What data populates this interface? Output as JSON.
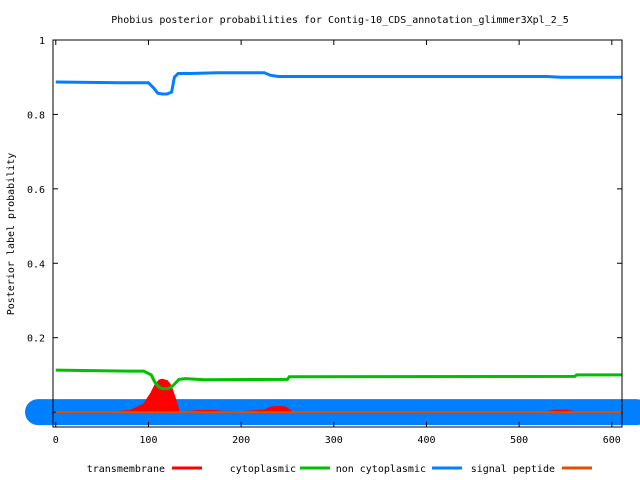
{
  "chart_data": {
    "type": "line",
    "title": "Phobius posterior probabilities for Contig-10_CDS_annotation_glimmer3Xpl_2_5",
    "xlabel": "",
    "ylabel": "Posterior label probability",
    "xlim": [
      -3,
      611
    ],
    "ylim": [
      -0.04,
      1.0
    ],
    "x_ticks": [
      0,
      100,
      200,
      300,
      400,
      500,
      600
    ],
    "y_ticks": [
      0.2,
      0.4,
      0.6,
      0.8,
      1
    ],
    "y_tick_labels": [
      "0.2",
      "0.4",
      "0.6",
      "0.8",
      "1"
    ],
    "x_tick_labels": [
      "0",
      "100",
      "200",
      "300",
      "400",
      "500",
      "600"
    ],
    "grid": false,
    "legend_position": "bottom",
    "series": [
      {
        "name": "transmembrane",
        "color": "#ff0000",
        "style": "filled",
        "x": [
          0,
          65,
          80,
          95,
          103,
          108,
          112,
          115,
          120,
          124,
          128,
          133,
          145,
          155,
          170,
          180,
          200,
          225,
          232,
          240,
          248,
          255,
          270,
          530,
          540,
          550,
          560,
          611
        ],
        "y": [
          0,
          0,
          0.003,
          0.02,
          0.05,
          0.075,
          0.085,
          0.087,
          0.083,
          0.07,
          0.04,
          0,
          0.001,
          0.003,
          0.003,
          0.001,
          0,
          0.004,
          0.012,
          0.014,
          0.012,
          0,
          0,
          0,
          0.004,
          0.004,
          0,
          0
        ]
      },
      {
        "name": "cytoplasmic",
        "color": "#00c000",
        "style": "line",
        "x": [
          0,
          80,
          95,
          103,
          107,
          111,
          115,
          120,
          124,
          128,
          133,
          140,
          160,
          250,
          252,
          560,
          562,
          611
        ],
        "y": [
          0.113,
          0.11,
          0.11,
          0.1,
          0.08,
          0.068,
          0.063,
          0.063,
          0.066,
          0.075,
          0.088,
          0.09,
          0.087,
          0.088,
          0.095,
          0.096,
          0.1,
          0.1
        ]
      },
      {
        "name": "non cytoplasmic",
        "color": "#0080ff",
        "style": "line",
        "x": [
          0,
          70,
          85,
          100,
          106,
          110,
          115,
          120,
          125,
          128,
          132,
          145,
          175,
          200,
          225,
          232,
          240,
          260,
          530,
          545,
          611
        ],
        "y": [
          0.887,
          0.885,
          0.885,
          0.885,
          0.87,
          0.857,
          0.855,
          0.855,
          0.86,
          0.9,
          0.91,
          0.91,
          0.912,
          0.912,
          0.912,
          0.905,
          0.902,
          0.902,
          0.902,
          0.9,
          0.9
        ]
      },
      {
        "name": "signal peptide",
        "color": "#e05000",
        "style": "line",
        "x": [
          0,
          611
        ],
        "y": [
          0,
          0
        ]
      }
    ]
  }
}
